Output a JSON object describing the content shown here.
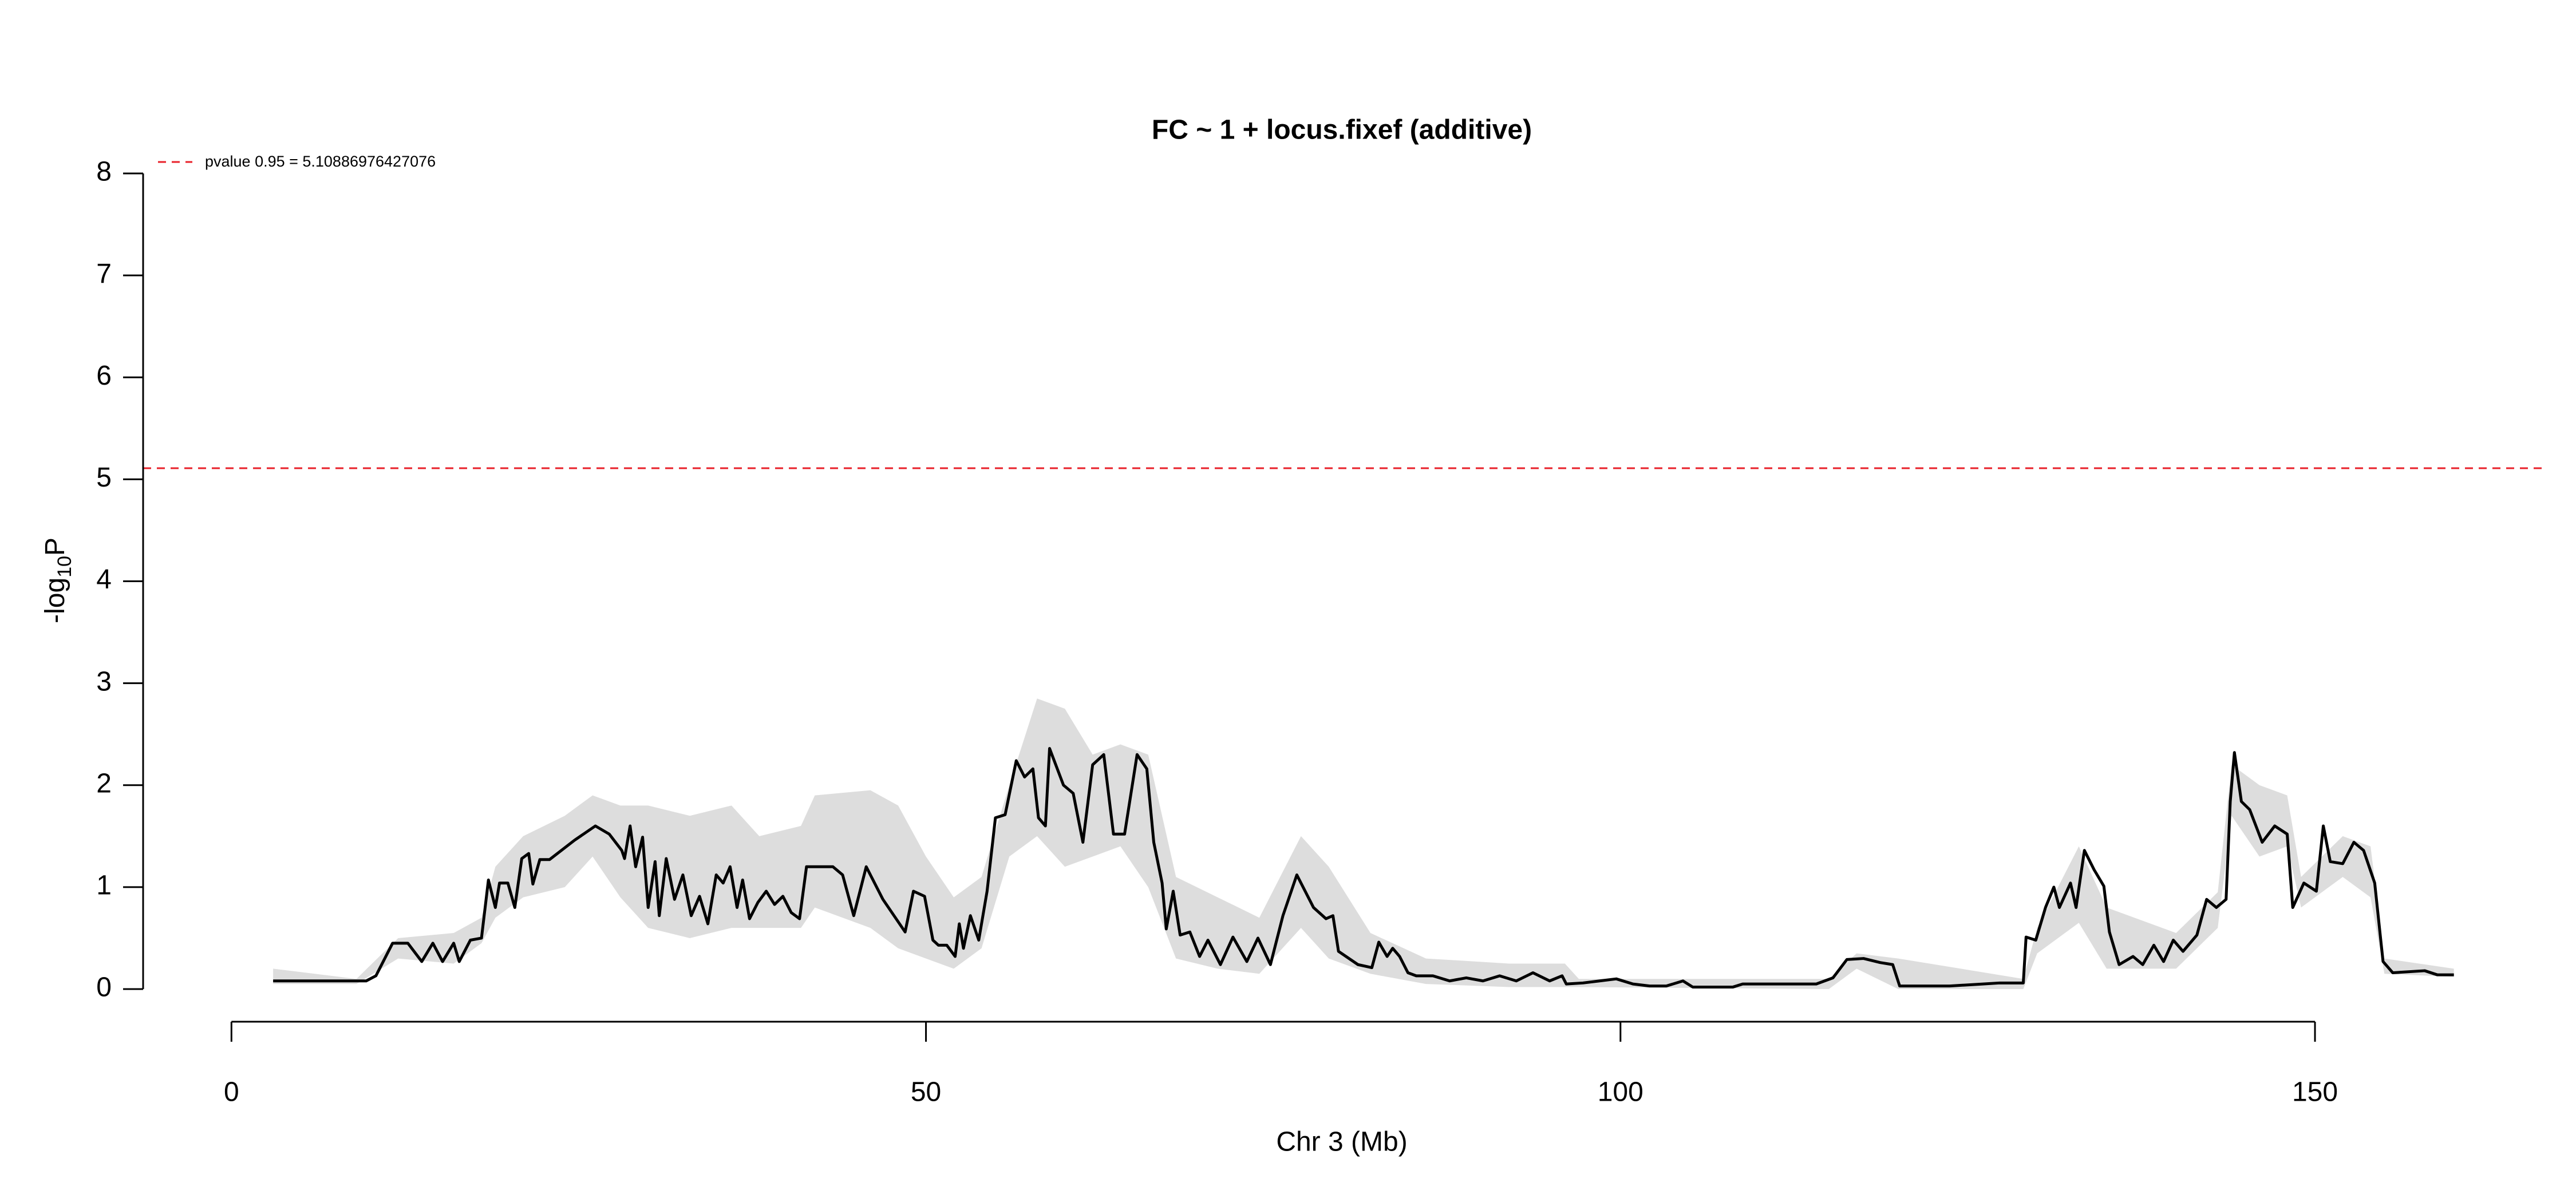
{
  "chart_data": {
    "type": "line",
    "title": "FC ~ 1 + locus.fixef (additive)",
    "x_label": "Chr 3 (Mb)",
    "y_label_parts": [
      "-log",
      "10",
      "P"
    ],
    "xlim": [
      -6.36,
      166.36
    ],
    "ylim": [
      0,
      8
    ],
    "xticks": [
      0,
      50,
      100,
      150
    ],
    "yticks": [
      0,
      1,
      2,
      3,
      4,
      5,
      6,
      7,
      8
    ],
    "threshold": {
      "label": "pvalue 0.95 = 5.10886976427076",
      "value": 5.10886976427076,
      "color": "#e8202a",
      "line_style": "dashed"
    },
    "band": {
      "color": "#dddddd",
      "x": [
        3,
        9,
        12,
        16,
        18,
        19,
        21,
        24,
        26,
        28,
        30,
        33,
        36,
        38,
        41,
        42,
        46,
        48,
        50,
        52,
        54,
        56,
        58,
        60,
        62,
        64,
        66,
        68,
        71,
        74,
        77,
        79,
        82,
        86,
        92,
        96,
        97,
        115,
        117,
        120,
        129,
        130,
        133,
        135,
        140,
        143,
        144,
        146,
        148,
        149,
        152,
        154,
        155,
        160
      ],
      "upper": [
        0.2,
        0.1,
        0.5,
        0.55,
        0.7,
        1.2,
        1.5,
        1.7,
        1.9,
        1.8,
        1.8,
        1.7,
        1.8,
        1.5,
        1.6,
        1.9,
        1.95,
        1.8,
        1.3,
        0.9,
        1.1,
        2.0,
        2.85,
        2.75,
        2.3,
        2.4,
        2.3,
        1.1,
        0.9,
        0.7,
        1.5,
        1.2,
        0.55,
        0.3,
        0.25,
        0.25,
        0.1,
        0.1,
        0.35,
        0.3,
        0.1,
        0.6,
        1.4,
        0.8,
        0.55,
        0.95,
        2.2,
        2.0,
        1.9,
        1.1,
        1.5,
        1.4,
        0.3,
        0.2
      ],
      "lower": [
        0.05,
        0.05,
        0.3,
        0.25,
        0.45,
        0.7,
        0.9,
        1.0,
        1.3,
        0.9,
        0.6,
        0.5,
        0.6,
        0.6,
        0.6,
        0.8,
        0.6,
        0.4,
        0.3,
        0.2,
        0.4,
        1.3,
        1.5,
        1.2,
        1.3,
        1.4,
        1.0,
        0.3,
        0.2,
        0.15,
        0.6,
        0.3,
        0.15,
        0.05,
        0.02,
        0.02,
        0.02,
        0,
        0.2,
        0,
        0,
        0.35,
        0.65,
        0.2,
        0.2,
        0.6,
        1.7,
        1.3,
        1.4,
        0.8,
        1.1,
        0.9,
        0.15,
        0.12
      ]
    },
    "series": [
      {
        "color": "#000000",
        "x": [
          3.0,
          9.7,
          10.4,
          11.6,
          12.7,
          13.7,
          14.5,
          15.2,
          16.0,
          16.4,
          17.2,
          18.0,
          18.5,
          19.0,
          19.3,
          19.9,
          20.4,
          20.9,
          21.4,
          21.7,
          22.2,
          22.9,
          24.7,
          26.2,
          27.2,
          28.1,
          28.3,
          28.7,
          29.1,
          29.6,
          30.0,
          30.5,
          30.8,
          31.3,
          31.9,
          32.5,
          33.1,
          33.7,
          34.3,
          34.9,
          35.4,
          35.9,
          36.4,
          36.8,
          37.3,
          37.9,
          38.5,
          39.1,
          39.7,
          40.3,
          40.9,
          41.4,
          43.3,
          44.0,
          44.8,
          45.7,
          46.9,
          48.5,
          49.1,
          49.9,
          50.5,
          50.9,
          51.5,
          52.1,
          52.4,
          52.7,
          53.2,
          53.8,
          54.4,
          55.0,
          55.7,
          56.5,
          57.1,
          57.7,
          58.1,
          58.6,
          58.9,
          59.9,
          60.6,
          61.3,
          62.0,
          62.8,
          63.5,
          64.3,
          65.2,
          65.9,
          66.4,
          67.0,
          67.3,
          67.8,
          68.3,
          69.0,
          69.7,
          70.3,
          71.2,
          72.1,
          73.1,
          73.9,
          74.8,
          75.7,
          76.7,
          77.9,
          78.8,
          79.3,
          79.7,
          81.1,
          82.1,
          82.6,
          83.2,
          83.6,
          84.1,
          84.7,
          85.3,
          86.5,
          87.7,
          88.9,
          90.1,
          91.3,
          92.5,
          93.7,
          94.9,
          95.8,
          96.1,
          97.3,
          98.5,
          99.7,
          100.9,
          102.1,
          103.3,
          104.5,
          105.2,
          108.1,
          108.8,
          110.5,
          114.1,
          115.3,
          116.3,
          117.5,
          118.7,
          119.6,
          120.1,
          123.7,
          126.1,
          127.3,
          129.0,
          129.2,
          129.9,
          130.6,
          131.2,
          131.6,
          132.4,
          132.8,
          133.4,
          134.1,
          134.8,
          135.2,
          135.9,
          136.9,
          137.6,
          138.4,
          139.1,
          139.8,
          140.5,
          141.5,
          142.2,
          142.9,
          143.6,
          143.9,
          144.2,
          144.7,
          145.3,
          146.2,
          147.1,
          148.0,
          148.4,
          149.2,
          150.1,
          150.6,
          151.1,
          152.0,
          152.8,
          153.5,
          154.3,
          154.9,
          155.6,
          157.9,
          158.8,
          160.0
        ],
        "values": [
          0.08,
          0.08,
          0.13,
          0.45,
          0.45,
          0.27,
          0.45,
          0.27,
          0.45,
          0.27,
          0.48,
          0.5,
          1.07,
          0.8,
          1.04,
          1.04,
          0.8,
          1.28,
          1.33,
          1.03,
          1.27,
          1.27,
          1.46,
          1.6,
          1.52,
          1.36,
          1.28,
          1.6,
          1.2,
          1.49,
          0.8,
          1.25,
          0.72,
          1.28,
          0.88,
          1.12,
          0.72,
          0.91,
          0.64,
          1.12,
          1.04,
          1.2,
          0.8,
          1.07,
          0.69,
          0.85,
          0.96,
          0.83,
          0.91,
          0.75,
          0.69,
          1.2,
          1.2,
          1.12,
          0.72,
          1.2,
          0.88,
          0.56,
          0.96,
          0.91,
          0.48,
          0.43,
          0.43,
          0.32,
          0.64,
          0.4,
          0.72,
          0.48,
          0.96,
          1.68,
          1.71,
          2.24,
          2.08,
          2.16,
          1.68,
          1.6,
          2.36,
          2.0,
          1.92,
          1.44,
          2.2,
          2.3,
          1.52,
          1.52,
          2.3,
          2.16,
          1.44,
          1.04,
          0.59,
          0.96,
          0.53,
          0.56,
          0.32,
          0.48,
          0.24,
          0.51,
          0.27,
          0.5,
          0.24,
          0.72,
          1.12,
          0.8,
          0.69,
          0.72,
          0.37,
          0.24,
          0.21,
          0.46,
          0.32,
          0.4,
          0.32,
          0.16,
          0.13,
          0.13,
          0.08,
          0.11,
          0.08,
          0.13,
          0.08,
          0.16,
          0.08,
          0.13,
          0.05,
          0.06,
          0.08,
          0.1,
          0.05,
          0.03,
          0.03,
          0.08,
          0.02,
          0.02,
          0.05,
          0.05,
          0.05,
          0.11,
          0.29,
          0.3,
          0.26,
          0.24,
          0.03,
          0.03,
          0.05,
          0.06,
          0.06,
          0.51,
          0.48,
          0.8,
          1.0,
          0.8,
          1.04,
          0.8,
          1.36,
          1.17,
          1.01,
          0.56,
          0.24,
          0.32,
          0.24,
          0.43,
          0.27,
          0.48,
          0.37,
          0.53,
          0.88,
          0.8,
          0.88,
          1.84,
          2.32,
          1.84,
          1.76,
          1.44,
          1.6,
          1.52,
          0.8,
          1.04,
          0.96,
          1.6,
          1.25,
          1.23,
          1.44,
          1.36,
          1.04,
          0.27,
          0.16,
          0.18,
          0.14,
          0.14
        ]
      }
    ]
  }
}
